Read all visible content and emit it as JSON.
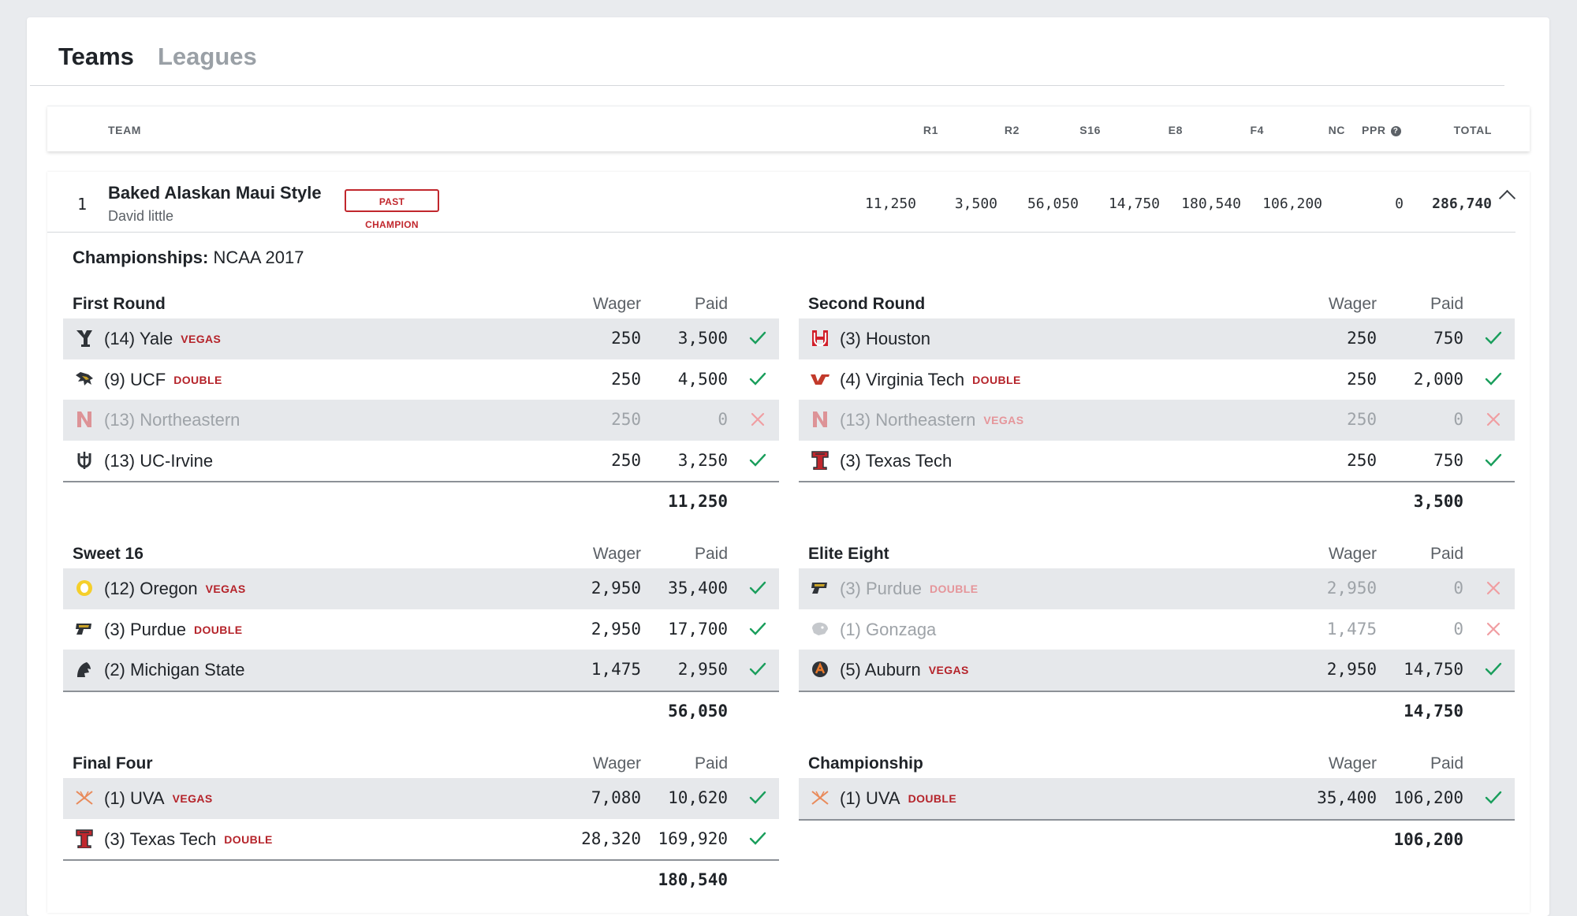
{
  "tabs": [
    {
      "label": "Teams"
    },
    {
      "label": "Leagues"
    }
  ],
  "table_header": {
    "team": "TEAM",
    "r1": "R1",
    "r2": "R2",
    "s16": "S16",
    "e8": "E8",
    "f4": "F4",
    "nc": "NC",
    "ppr": "PPR",
    "ppr_help": "?",
    "total": "TOTAL"
  },
  "team": {
    "rank": "1",
    "name": "Baked Alaskan Maui Style",
    "owner": "David little",
    "badge": "PAST CHAMPION",
    "scores": {
      "r1": "11,250",
      "r2": "3,500",
      "s16": "56,050",
      "e8": "14,750",
      "f4": "180,540",
      "nc": "106,200",
      "ppr": "0",
      "total": "286,740"
    },
    "championships_label": "Championships:",
    "championships_value": "NCAA 2017"
  },
  "colors": {
    "accent_red": "#b5232a",
    "check_green": "#1a9e5c",
    "lost_x": "#f09ea2"
  },
  "sections": {
    "first_round": {
      "title": "First Round",
      "wager_label": "Wager",
      "paid_label": "Paid",
      "total": "11,250",
      "rows": [
        {
          "icon": "yale-logo-icon",
          "pick": "(14) Yale",
          "tag": "VEGAS",
          "wager": "250",
          "paid": "3,500",
          "status": "won"
        },
        {
          "icon": "ucf-logo-icon",
          "pick": "(9) UCF",
          "tag": "DOUBLE",
          "wager": "250",
          "paid": "4,500",
          "status": "won"
        },
        {
          "icon": "northeastern-logo-icon",
          "pick": "(13) Northeastern",
          "tag": "",
          "wager": "250",
          "paid": "0",
          "status": "lost"
        },
        {
          "icon": "uc-irvine-logo-icon",
          "pick": "(13) UC-Irvine",
          "tag": "",
          "wager": "250",
          "paid": "3,250",
          "status": "won"
        }
      ]
    },
    "second_round": {
      "title": "Second Round",
      "wager_label": "Wager",
      "paid_label": "Paid",
      "total": "3,500",
      "rows": [
        {
          "icon": "houston-logo-icon",
          "pick": "(3) Houston",
          "tag": "",
          "wager": "250",
          "paid": "750",
          "status": "won"
        },
        {
          "icon": "virginia-tech-logo-icon",
          "pick": "(4) Virginia Tech",
          "tag": "DOUBLE",
          "wager": "250",
          "paid": "2,000",
          "status": "won"
        },
        {
          "icon": "northeastern-logo-icon",
          "pick": "(13) Northeastern",
          "tag": "VEGAS",
          "wager": "250",
          "paid": "0",
          "status": "lost"
        },
        {
          "icon": "texas-tech-logo-icon",
          "pick": "(3) Texas Tech",
          "tag": "",
          "wager": "250",
          "paid": "750",
          "status": "won"
        }
      ]
    },
    "sweet_16": {
      "title": "Sweet 16",
      "wager_label": "Wager",
      "paid_label": "Paid",
      "total": "56,050",
      "rows": [
        {
          "icon": "oregon-logo-icon",
          "pick": "(12) Oregon",
          "tag": "VEGAS",
          "wager": "2,950",
          "paid": "35,400",
          "status": "won"
        },
        {
          "icon": "purdue-logo-icon",
          "pick": "(3) Purdue",
          "tag": "DOUBLE",
          "wager": "2,950",
          "paid": "17,700",
          "status": "won"
        },
        {
          "icon": "michigan-state-logo-icon",
          "pick": "(2) Michigan State",
          "tag": "",
          "wager": "1,475",
          "paid": "2,950",
          "status": "won"
        }
      ]
    },
    "elite_eight": {
      "title": "Elite Eight",
      "wager_label": "Wager",
      "paid_label": "Paid",
      "total": "14,750",
      "rows": [
        {
          "icon": "purdue-logo-icon",
          "pick": "(3) Purdue",
          "tag": "DOUBLE",
          "wager": "2,950",
          "paid": "0",
          "status": "lost"
        },
        {
          "icon": "gonzaga-logo-icon",
          "pick": "(1) Gonzaga",
          "tag": "",
          "wager": "1,475",
          "paid": "0",
          "status": "lost"
        },
        {
          "icon": "auburn-logo-icon",
          "pick": "(5) Auburn",
          "tag": "VEGAS",
          "wager": "2,950",
          "paid": "14,750",
          "status": "won"
        }
      ]
    },
    "final_four": {
      "title": "Final Four",
      "wager_label": "Wager",
      "paid_label": "Paid",
      "total": "180,540",
      "rows": [
        {
          "icon": "uva-logo-icon",
          "pick": "(1) UVA",
          "tag": "VEGAS",
          "wager": "7,080",
          "paid": "10,620",
          "status": "won"
        },
        {
          "icon": "texas-tech-logo-icon",
          "pick": "(3) Texas Tech",
          "tag": "DOUBLE",
          "wager": "28,320",
          "paid": "169,920",
          "status": "won"
        }
      ]
    },
    "championship": {
      "title": "Championship",
      "wager_label": "Wager",
      "paid_label": "Paid",
      "total": "106,200",
      "rows": [
        {
          "icon": "uva-logo-icon",
          "pick": "(1) UVA",
          "tag": "DOUBLE",
          "wager": "35,400",
          "paid": "106,200",
          "status": "won"
        }
      ]
    }
  }
}
